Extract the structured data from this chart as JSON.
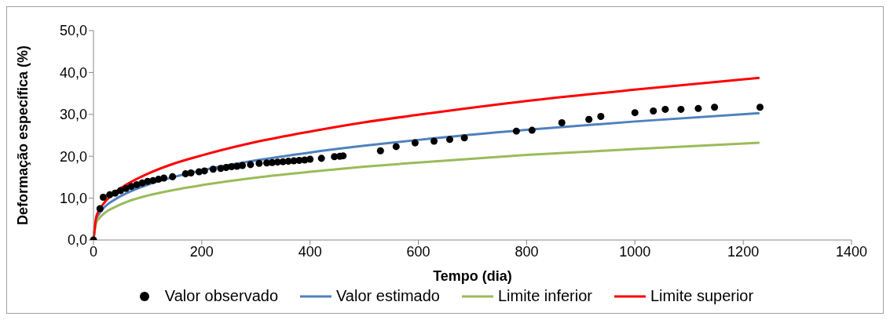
{
  "chart_data": {
    "type": "line",
    "xlabel": "Tempo (dia)",
    "ylabel": "Deformação específica (%)",
    "xlim": [
      0,
      1400
    ],
    "xticks": [
      0,
      200,
      400,
      600,
      800,
      1000,
      1200,
      1400
    ],
    "ylim": [
      0,
      50
    ],
    "yticks": [
      {
        "value": 0,
        "label": "0,0"
      },
      {
        "value": 10,
        "label": "10,0"
      },
      {
        "value": 20,
        "label": "20,0"
      },
      {
        "value": 30,
        "label": "30,0"
      },
      {
        "value": 40,
        "label": "40,0"
      },
      {
        "value": 50,
        "label": "50,0"
      }
    ],
    "grid": false,
    "legend": "bottom",
    "series": [
      {
        "name": "Valor observado",
        "type": "scatter",
        "color": "#000000",
        "x": [
          0,
          12,
          18,
          30,
          40,
          50,
          60,
          70,
          80,
          90,
          100,
          110,
          120,
          130,
          146,
          170,
          180,
          195,
          205,
          221,
          235,
          245,
          255,
          265,
          275,
          290,
          306,
          320,
          330,
          340,
          350,
          360,
          370,
          380,
          390,
          400,
          421,
          445,
          455,
          461,
          530,
          559,
          594,
          629,
          658,
          685,
          781,
          810,
          865,
          915,
          937,
          1000,
          1034,
          1056,
          1085,
          1117,
          1147,
          1231
        ],
        "values": [
          0,
          7.5,
          10.2,
          10.8,
          11.2,
          11.8,
          12.3,
          12.8,
          13.2,
          13.6,
          14,
          14.2,
          14.5,
          14.8,
          15.1,
          15.8,
          16,
          16.3,
          16.5,
          16.9,
          17.1,
          17.3,
          17.5,
          17.6,
          17.8,
          18,
          18.3,
          18.4,
          18.5,
          18.6,
          18.7,
          18.8,
          18.9,
          19,
          19.1,
          19.3,
          19.5,
          19.9,
          20,
          20.1,
          21.3,
          22.3,
          23.2,
          23.6,
          24,
          24.4,
          26,
          26.2,
          28,
          28.8,
          29.5,
          30.4,
          30.8,
          31.2,
          31.2,
          31.4,
          31.7,
          31.7
        ]
      },
      {
        "name": "Valor estimado",
        "color": "#4f81bd",
        "x": [
          0,
          5,
          10,
          20,
          40,
          70,
          100,
          150,
          200,
          300,
          400,
          500,
          600,
          800,
          1000,
          1230
        ],
        "values": [
          0,
          4.9,
          6.2,
          7.8,
          9.7,
          11.7,
          13.2,
          15.1,
          16.6,
          19,
          20.9,
          22.5,
          23.9,
          26.3,
          28.3,
          30.3
        ]
      },
      {
        "name": "Limite inferior",
        "color": "#9bbb59",
        "x": [
          0,
          5,
          10,
          20,
          40,
          70,
          100,
          150,
          200,
          300,
          400,
          500,
          600,
          800,
          1000,
          1230
        ],
        "values": [
          0,
          4.1,
          5.1,
          6.4,
          7.9,
          9.5,
          10.6,
          12,
          13.1,
          14.9,
          16.3,
          17.5,
          18.5,
          20.3,
          21.7,
          23.2
        ]
      },
      {
        "name": "Limite superior",
        "color": "#ff0000",
        "x": [
          0,
          5,
          10,
          20,
          40,
          70,
          100,
          150,
          200,
          300,
          400,
          500,
          600,
          800,
          1000,
          1230
        ],
        "values": [
          0,
          5.4,
          7,
          8.9,
          11.4,
          13.9,
          15.8,
          18.3,
          20.2,
          23.4,
          25.9,
          28.1,
          29.9,
          33.2,
          35.9,
          38.7
        ]
      }
    ]
  }
}
